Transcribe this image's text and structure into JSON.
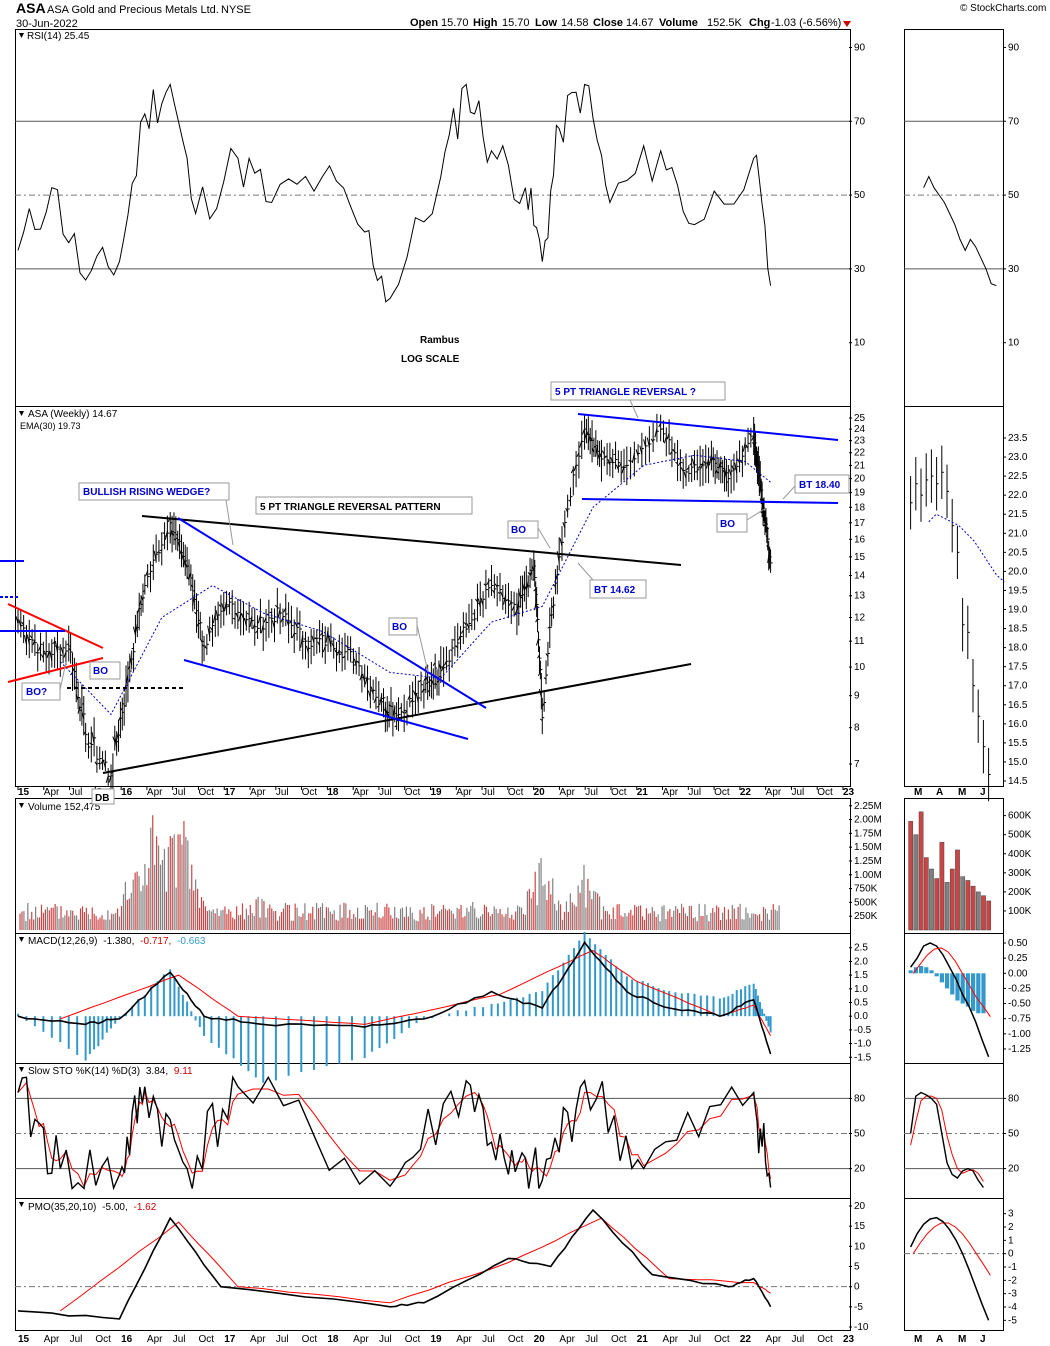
{
  "header": {
    "symbol": "ASA",
    "name": "ASA Gold and Precious Metals Ltd.",
    "exchange": "NYSE",
    "date": "30-Jun-2022",
    "open_label": "Open",
    "open": "15.70",
    "high_label": "High",
    "high": "15.70",
    "low_label": "Low",
    "low": "14.58",
    "close_label": "Close",
    "close": "14.67",
    "volume_label": "Volume",
    "volume": "152.5K",
    "chg_label": "Chg",
    "chg": "-1.03 (-6.56%)",
    "watermark": "© StockCharts.com"
  },
  "colors": {
    "price": "#000000",
    "ema": "#0000cc",
    "trend_blue": "#0000ff",
    "trend_red": "#ff0000",
    "vol_up": "#808080",
    "vol_down": "#cc4444",
    "rsi_over": "#557755",
    "rsi_under": "#996666",
    "histogram": "#3399cc",
    "signal": "#ff0000"
  },
  "x_axis": {
    "labels": [
      "15",
      "Apr",
      "Jul",
      "Oct",
      "16",
      "Apr",
      "Jul",
      "Oct",
      "17",
      "Apr",
      "Jul",
      "Oct",
      "18",
      "Apr",
      "Jul",
      "Oct",
      "19",
      "Apr",
      "Jul",
      "Oct",
      "20",
      "Apr",
      "Jul",
      "Oct",
      "21",
      "Apr",
      "Jul",
      "Oct",
      "22",
      "Apr",
      "Jul",
      "Oct",
      "23"
    ],
    "small_labels": [
      "M",
      "A",
      "M",
      "J"
    ]
  },
  "panels": {
    "rsi": {
      "label": "RSI(14) 25.45",
      "ticks": [
        "90",
        "70",
        "50",
        "30",
        "10"
      ],
      "notes": [
        "Rambus",
        "LOG SCALE"
      ]
    },
    "price": {
      "label": "ASA (Weekly) 14.67",
      "ema_label": "EMA(30) 19.73",
      "ticks": [
        "25",
        "24",
        "23",
        "22",
        "21",
        "20",
        "19",
        "18",
        "17",
        "16",
        "15",
        "14",
        "13",
        "12",
        "11",
        "10",
        "9",
        "8",
        "7"
      ],
      "small_ticks": [
        "23.5",
        "23.0",
        "22.5",
        "22.0",
        "21.5",
        "21.0",
        "20.5",
        "20.0",
        "19.5",
        "19.0",
        "18.5",
        "18.0",
        "17.5",
        "17.0",
        "16.5",
        "16.0",
        "15.5",
        "15.0",
        "14.5"
      ]
    },
    "volume": {
      "label": "Volume 152,475",
      "ticks": [
        "2.25M",
        "2.00M",
        "1.75M",
        "1.50M",
        "1.25M",
        "1.00M",
        "750K",
        "500K",
        "250K"
      ],
      "small_ticks": [
        "600K",
        "500K",
        "400K",
        "300K",
        "200K",
        "100K"
      ]
    },
    "macd": {
      "label": "MACD(12,26,9)",
      "v1": "-1.380,",
      "v2": "-0.717,",
      "v3": "-0.663",
      "ticks": [
        "2.5",
        "2.0",
        "1.5",
        "1.0",
        "0.5",
        "0.0",
        "-0.5",
        "-1.0",
        "-1.5"
      ],
      "small_ticks": [
        "0.50",
        "0.25",
        "0.00",
        "-0.25",
        "-0.50",
        "-0.75",
        "-1.00",
        "-1.25"
      ]
    },
    "sto": {
      "label": "Slow STO %K(14) %D(3)",
      "v1": "3.84,",
      "v2": "9.11",
      "ticks": [
        "80",
        "50",
        "20"
      ]
    },
    "pmo": {
      "label": "PMO(35,20,10)",
      "v1": "-5.00,",
      "v2": "-1.62",
      "ticks": [
        "20",
        "15",
        "10",
        "5",
        "0",
        "-5",
        "-10"
      ],
      "small_ticks": [
        "3",
        "2",
        "1",
        "0",
        "-1",
        "-2",
        "-3",
        "-4",
        "-5"
      ]
    }
  },
  "annotations": {
    "five_pt_reversal_q": "5 PT TRIANGLE REVERSAL ?",
    "bullish_wedge": "BULLISH RISING WEDGE?",
    "five_pt_pattern": "5 PT TRIANGLE REVERSAL PATTERN",
    "bo": "BO",
    "bo_q": "BO?",
    "bt_1840": "BT 18.40",
    "bt_1462": "BT 14.62",
    "db": "DB"
  },
  "chart_data": [
    {
      "type": "line",
      "title": "ASA (Weekly) 14.67",
      "scale": "log",
      "ylim": [
        6.5,
        26
      ],
      "series": [
        {
          "name": "ASA (Weekly)",
          "points": [
            [
              "2015-01",
              11.8
            ],
            [
              "2015-04",
              10.5
            ],
            [
              "2015-07",
              10.8
            ],
            [
              "2015-09",
              7.8
            ],
            [
              "2015-12",
              6.7
            ],
            [
              "2016-02",
              9.5
            ],
            [
              "2016-04",
              13.5
            ],
            [
              "2016-07",
              17.0
            ],
            [
              "2016-09",
              14.5
            ],
            [
              "2016-11",
              10.8
            ],
            [
              "2017-02",
              12.7
            ],
            [
              "2017-05",
              11.6
            ],
            [
              "2017-08",
              12.2
            ],
            [
              "2017-11",
              11.0
            ],
            [
              "2018-02",
              11.0
            ],
            [
              "2018-05",
              10.2
            ],
            [
              "2018-08",
              8.8
            ],
            [
              "2018-10",
              8.4
            ],
            [
              "2019-01",
              9.2
            ],
            [
              "2019-03",
              10.0
            ],
            [
              "2019-06",
              11.5
            ],
            [
              "2019-09",
              13.5
            ],
            [
              "2019-12",
              12.2
            ],
            [
              "2020-02",
              14.5
            ],
            [
              "2020-03",
              8.3
            ],
            [
              "2020-05",
              15.0
            ],
            [
              "2020-08",
              24.0
            ],
            [
              "2020-10",
              21.5
            ],
            [
              "2021-01",
              21.0
            ],
            [
              "2021-05",
              24.0
            ],
            [
              "2021-08",
              20.5
            ],
            [
              "2021-11",
              21.5
            ],
            [
              "2022-01",
              20.0
            ],
            [
              "2022-04",
              23.5
            ],
            [
              "2022-05",
              18.5
            ],
            [
              "2022-06",
              14.67
            ]
          ]
        },
        {
          "name": "EMA(30)",
          "points": [
            [
              "2015-06",
              10.2
            ],
            [
              "2015-12",
              8.4
            ],
            [
              "2016-06",
              12.0
            ],
            [
              "2016-12",
              13.5
            ],
            [
              "2017-06",
              12.2
            ],
            [
              "2018-01",
              11.4
            ],
            [
              "2018-09",
              9.8
            ],
            [
              "2019-03",
              9.6
            ],
            [
              "2019-09",
              11.8
            ],
            [
              "2020-03",
              12.5
            ],
            [
              "2020-09",
              18.0
            ],
            [
              "2021-03",
              21.0
            ],
            [
              "2021-09",
              21.8
            ],
            [
              "2022-03",
              21.3
            ],
            [
              "2022-06",
              19.73
            ]
          ]
        }
      ]
    },
    {
      "type": "line",
      "title": "RSI(14) 25.45",
      "ylim": [
        0,
        100
      ],
      "series": [
        {
          "name": "RSI(14)",
          "points": [
            [
              "2015-01",
              35
            ],
            [
              "2015-05",
              52
            ],
            [
              "2015-09",
              27
            ],
            [
              "2016-01",
              32
            ],
            [
              "2016-04",
              72
            ],
            [
              "2016-07",
              80
            ],
            [
              "2016-10",
              45
            ],
            [
              "2017-03",
              60
            ],
            [
              "2017-07",
              48
            ],
            [
              "2018-01",
              55
            ],
            [
              "2018-06",
              40
            ],
            [
              "2018-09",
              22
            ],
            [
              "2019-03",
              55
            ],
            [
              "2019-06",
              80
            ],
            [
              "2019-09",
              62
            ],
            [
              "2020-01",
              52
            ],
            [
              "2020-03",
              32
            ],
            [
              "2020-05",
              68
            ],
            [
              "2020-08",
              80
            ],
            [
              "2020-11",
              48
            ],
            [
              "2021-05",
              62
            ],
            [
              "2021-09",
              42
            ],
            [
              "2022-04",
              60
            ],
            [
              "2022-06",
              25.45
            ]
          ]
        }
      ]
    },
    {
      "type": "bar",
      "title": "Volume 152,475",
      "ylim": [
        0,
        2250000
      ],
      "series": [
        {
          "name": "Volume",
          "points": [
            [
              "2015-06",
              300000
            ],
            [
              "2016-03",
              1200000
            ],
            [
              "2016-05",
              2100000
            ],
            [
              "2016-08",
              2150000
            ],
            [
              "2017-06",
              650000
            ],
            [
              "2018-06",
              500000
            ],
            [
              "2019-06",
              700000
            ],
            [
              "2020-03",
              1250000
            ],
            [
              "2020-08",
              1100000
            ],
            [
              "2021-06",
              500000
            ],
            [
              "2022-06",
              152475
            ]
          ]
        }
      ]
    },
    {
      "type": "line",
      "title": "MACD(12,26,9) -1.380, -0.717, -0.663",
      "ylim": [
        -1.5,
        2.5
      ],
      "series": [
        {
          "name": "MACD",
          "points": [
            [
              "2015-01",
              0.0
            ],
            [
              "2015-09",
              -0.3
            ],
            [
              "2016-01",
              -0.1
            ],
            [
              "2016-07",
              1.6
            ],
            [
              "2016-11",
              0.0
            ],
            [
              "2017-06",
              -0.3
            ],
            [
              "2018-06",
              -0.4
            ],
            [
              "2019-01",
              -0.1
            ],
            [
              "2019-09",
              0.9
            ],
            [
              "2020-03",
              0.3
            ],
            [
              "2020-08",
              2.7
            ],
            [
              "2021-01",
              0.9
            ],
            [
              "2021-06",
              0.3
            ],
            [
              "2021-12",
              0.0
            ],
            [
              "2022-04",
              0.6
            ],
            [
              "2022-06",
              -1.38
            ]
          ]
        },
        {
          "name": "Signal",
          "points": [
            [
              "2015-06",
              -0.1
            ],
            [
              "2016-08",
              1.5
            ],
            [
              "2017-03",
              0.0
            ],
            [
              "2018-06",
              -0.3
            ],
            [
              "2019-10",
              0.8
            ],
            [
              "2020-09",
              2.4
            ],
            [
              "2021-02",
              1.3
            ],
            [
              "2021-12",
              0.0
            ],
            [
              "2022-04",
              0.4
            ],
            [
              "2022-06",
              -0.717
            ]
          ]
        }
      ]
    },
    {
      "type": "line",
      "title": "Slow STO %K(14) %D(3) 3.84, 9.11",
      "ylim": [
        0,
        100
      ],
      "series": [
        {
          "name": "%K",
          "points": [
            [
              "2015-01",
              85
            ],
            [
              "2015-06",
              20
            ],
            [
              "2016-01",
              15
            ],
            [
              "2016-04",
              90
            ],
            [
              "2016-09",
              20
            ],
            [
              "2017-03",
              90
            ],
            [
              "2018-09",
              5
            ],
            [
              "2019-06",
              95
            ],
            [
              "2019-11",
              15
            ],
            [
              "2020-03",
              10
            ],
            [
              "2020-08",
              95
            ],
            [
              "2021-03",
              20
            ],
            [
              "2022-04",
              85
            ],
            [
              "2022-06",
              3.84
            ]
          ]
        }
      ]
    },
    {
      "type": "line",
      "title": "PMO(35,20,10) -5.00, -1.62",
      "ylim": [
        -10,
        20
      ],
      "series": [
        {
          "name": "PMO",
          "points": [
            [
              "2015-01",
              -6
            ],
            [
              "2016-01",
              -8
            ],
            [
              "2016-07",
              17
            ],
            [
              "2017-01",
              0
            ],
            [
              "2018-09",
              -5
            ],
            [
              "2019-01",
              -4
            ],
            [
              "2019-11",
              7
            ],
            [
              "2020-04",
              5
            ],
            [
              "2020-09",
              19
            ],
            [
              "2021-04",
              3
            ],
            [
              "2022-01",
              0
            ],
            [
              "2022-04",
              2
            ],
            [
              "2022-06",
              -5.0
            ]
          ]
        },
        {
          "name": "Signal",
          "points": [
            [
              "2015-06",
              -6
            ],
            [
              "2016-08",
              16
            ],
            [
              "2017-03",
              0
            ],
            [
              "2018-09",
              -4
            ],
            [
              "2019-11",
              6
            ],
            [
              "2020-10",
              17
            ],
            [
              "2021-06",
              2
            ],
            [
              "2022-04",
              1
            ],
            [
              "2022-06",
              -1.62
            ]
          ]
        }
      ]
    }
  ]
}
